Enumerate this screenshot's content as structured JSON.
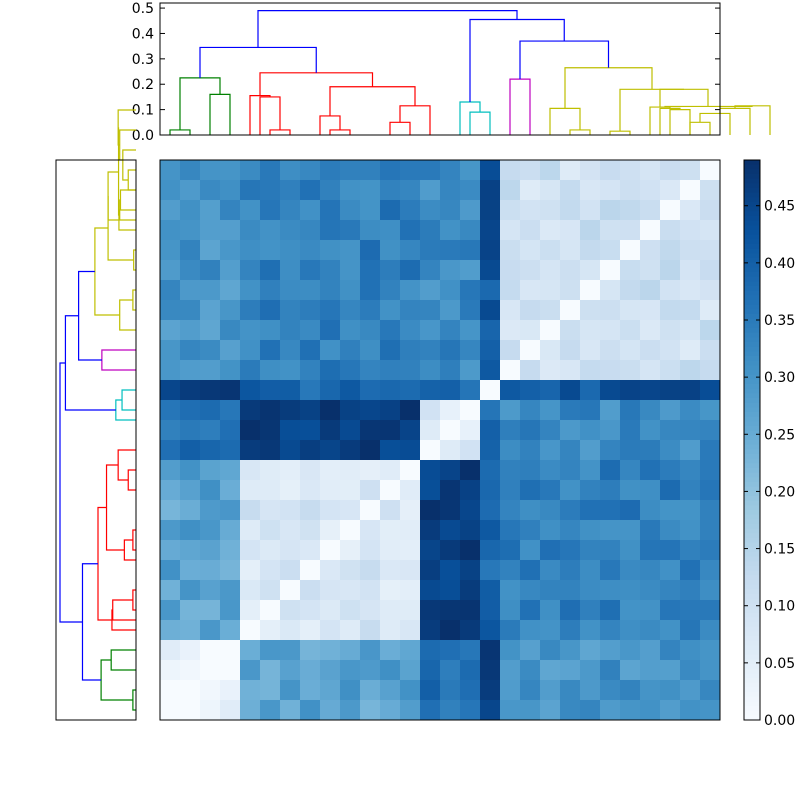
{
  "chart_data": [
    {
      "type": "dendrogram",
      "orientation": "top",
      "ylim": [
        0,
        0.52
      ],
      "yticks": [
        0.0,
        0.1,
        0.2,
        0.3,
        0.4,
        0.5
      ],
      "ytick_labels": [
        "0.0",
        "0.1",
        "0.2",
        "0.3",
        "0.4",
        "0.5"
      ],
      "leaf_count": 28,
      "links": [
        {
          "a": 0.5,
          "b": 1.5,
          "h": 0.02,
          "ha": 0,
          "hb": 0,
          "color": "#008000"
        },
        {
          "a": 2.5,
          "b": 3.5,
          "h": 0.16,
          "ha": 0,
          "hb": 0,
          "color": "#008000"
        },
        {
          "a": 1.0,
          "b": 3.0,
          "h": 0.225,
          "ha": 0.02,
          "hb": 0.16,
          "color": "#008000"
        },
        {
          "a": 5.5,
          "b": 6.5,
          "h": 0.02,
          "ha": 0,
          "hb": 0,
          "color": "#ff0000"
        },
        {
          "a": 5.0,
          "b": 6.0,
          "h": 0.15,
          "ha": 0,
          "hb": 0.02,
          "color": "#ff0000"
        },
        {
          "a": 4.5,
          "b": 5.5,
          "h": 0.155,
          "ha": 0,
          "hb": 0.15,
          "color": "#ff0000"
        },
        {
          "a": 8.5,
          "b": 9.5,
          "h": 0.02,
          "ha": 0,
          "hb": 0,
          "color": "#ff0000"
        },
        {
          "a": 8.0,
          "b": 9.0,
          "h": 0.075,
          "ha": 0,
          "hb": 0.02,
          "color": "#ff0000"
        },
        {
          "a": 11.5,
          "b": 12.5,
          "h": 0.05,
          "ha": 0,
          "hb": 0,
          "color": "#ff0000"
        },
        {
          "a": 12.0,
          "b": 13.5,
          "h": 0.115,
          "ha": 0.05,
          "hb": 0,
          "color": "#ff0000"
        },
        {
          "a": 8.5,
          "b": 12.75,
          "h": 0.19,
          "ha": 0.075,
          "hb": 0.115,
          "color": "#ff0000"
        },
        {
          "a": 5.0,
          "b": 10.625,
          "h": 0.245,
          "ha": 0.155,
          "hb": 0.19,
          "color": "#ff0000"
        },
        {
          "a": 2.0,
          "b": 7.8125,
          "h": 0.345,
          "ha": 0.225,
          "hb": 0.245,
          "color": "#0000ff"
        },
        {
          "a": 15.5,
          "b": 16.5,
          "h": 0.09,
          "ha": 0,
          "hb": 0,
          "color": "#00bfbf"
        },
        {
          "a": 15.0,
          "b": 16.0,
          "h": 0.13,
          "ha": 0,
          "hb": 0.09,
          "color": "#00bfbf"
        },
        {
          "a": 17.5,
          "b": 18.5,
          "h": 0.22,
          "ha": 0,
          "hb": 0,
          "color": "#bf00bf"
        },
        {
          "a": 20.5,
          "b": 21.5,
          "h": 0.02,
          "ha": 0,
          "hb": 0,
          "color": "#bfbf00"
        },
        {
          "a": 19.5,
          "b": 21.0,
          "h": 0.105,
          "ha": 0,
          "hb": 0.02,
          "color": "#bfbf00"
        },
        {
          "a": 22.5,
          "b": 23.5,
          "h": 0.015,
          "ha": 0,
          "hb": 0,
          "color": "#bfbf00"
        },
        {
          "a": 25.5,
          "b": 26.5,
          "h": 0.1,
          "ha": 0,
          "hb": 0,
          "color": "#bfbf00"
        },
        {
          "a": 25.0,
          "b": 26.0,
          "h": 0.105,
          "ha": 0,
          "hb": 0.1,
          "color": "#bfbf00"
        },
        {
          "a": 24.5,
          "b": 25.5,
          "h": 0.11,
          "ha": 0,
          "hb": 0.105,
          "color": "#bfbf00"
        },
        {
          "a": 26.5,
          "b": 27.5,
          "h": 0.05,
          "ha": 0,
          "hb": 0,
          "color": "#bfbf00"
        },
        {
          "a": 27.0,
          "b": 28.5,
          "h": 0.085,
          "ha": 0.05,
          "hb": 0,
          "color": "#bfbf00"
        },
        {
          "a": 28.0,
          "b": 29.5,
          "h": 0.105,
          "ha": 0.085,
          "hb": 0,
          "color": "#bfbf00"
        },
        {
          "a": 28.75,
          "b": 30.5,
          "h": 0.115,
          "ha": 0.105,
          "hb": 0,
          "color": "#bfbf00"
        },
        {
          "a": 25.25,
          "b": 29.6,
          "h": 0.1125,
          "ha": 0.11,
          "hb": 0.115,
          "color": "#bfbf00"
        },
        {
          "a": 25.0,
          "b": 27.4,
          "h": 0.18,
          "ha": 0.1125,
          "hb": 0.1125,
          "color": "#bfbf00"
        },
        {
          "a": 23.0,
          "b": 26.2,
          "h": 0.18,
          "ha": 0.015,
          "hb": 0.18,
          "color": "#bfbf00"
        },
        {
          "a": 20.25,
          "b": 24.6,
          "h": 0.265,
          "ha": 0.105,
          "hb": 0.18,
          "color": "#bfbf00"
        },
        {
          "a": 18.0,
          "b": 22.425,
          "h": 0.37,
          "ha": 0.22,
          "hb": 0.265,
          "color": "#0000ff"
        },
        {
          "a": 15.5,
          "b": 20.2125,
          "h": 0.455,
          "ha": 0.13,
          "hb": 0.37,
          "color": "#0000ff"
        },
        {
          "a": 4.9,
          "b": 17.85,
          "h": 0.49,
          "ha": 0.345,
          "hb": 0.455,
          "color": "#0000ff"
        }
      ]
    },
    {
      "type": "dendrogram",
      "orientation": "left",
      "leaf_count": 28,
      "links": [
        {
          "a": 0.5,
          "b": 1.5,
          "h": 0.02,
          "ha": 0,
          "hb": 0,
          "color": "#008000"
        },
        {
          "a": 2.5,
          "b": 3.5,
          "h": 0.16,
          "ha": 0,
          "hb": 0,
          "color": "#008000"
        },
        {
          "a": 1.0,
          "b": 3.0,
          "h": 0.225,
          "ha": 0.02,
          "hb": 0.16,
          "color": "#008000"
        },
        {
          "a": 5.5,
          "b": 6.5,
          "h": 0.02,
          "ha": 0,
          "hb": 0,
          "color": "#ff0000"
        },
        {
          "a": 5.0,
          "b": 6.0,
          "h": 0.15,
          "ha": 0,
          "hb": 0.02,
          "color": "#ff0000"
        },
        {
          "a": 4.5,
          "b": 5.5,
          "h": 0.155,
          "ha": 0,
          "hb": 0.15,
          "color": "#ff0000"
        },
        {
          "a": 8.5,
          "b": 9.5,
          "h": 0.02,
          "ha": 0,
          "hb": 0,
          "color": "#ff0000"
        },
        {
          "a": 8.0,
          "b": 9.0,
          "h": 0.075,
          "ha": 0,
          "hb": 0.02,
          "color": "#ff0000"
        },
        {
          "a": 11.5,
          "b": 12.5,
          "h": 0.05,
          "ha": 0,
          "hb": 0,
          "color": "#ff0000"
        },
        {
          "a": 12.0,
          "b": 13.5,
          "h": 0.115,
          "ha": 0.05,
          "hb": 0,
          "color": "#ff0000"
        },
        {
          "a": 8.5,
          "b": 12.75,
          "h": 0.19,
          "ha": 0.075,
          "hb": 0.115,
          "color": "#ff0000"
        },
        {
          "a": 5.0,
          "b": 10.625,
          "h": 0.245,
          "ha": 0.155,
          "hb": 0.19,
          "color": "#ff0000"
        },
        {
          "a": 2.0,
          "b": 7.8125,
          "h": 0.345,
          "ha": 0.225,
          "hb": 0.245,
          "color": "#0000ff"
        },
        {
          "a": 15.5,
          "b": 16.5,
          "h": 0.09,
          "ha": 0,
          "hb": 0,
          "color": "#00bfbf"
        },
        {
          "a": 15.0,
          "b": 16.0,
          "h": 0.13,
          "ha": 0,
          "hb": 0.09,
          "color": "#00bfbf"
        },
        {
          "a": 17.5,
          "b": 18.5,
          "h": 0.22,
          "ha": 0,
          "hb": 0,
          "color": "#bf00bf"
        },
        {
          "a": 20.5,
          "b": 21.5,
          "h": 0.02,
          "ha": 0,
          "hb": 0,
          "color": "#bfbf00"
        },
        {
          "a": 19.5,
          "b": 21.0,
          "h": 0.105,
          "ha": 0,
          "hb": 0.02,
          "color": "#bfbf00"
        },
        {
          "a": 22.5,
          "b": 23.5,
          "h": 0.015,
          "ha": 0,
          "hb": 0,
          "color": "#bfbf00"
        },
        {
          "a": 25.5,
          "b": 26.5,
          "h": 0.1,
          "ha": 0,
          "hb": 0,
          "color": "#bfbf00"
        },
        {
          "a": 25.0,
          "b": 26.0,
          "h": 0.105,
          "ha": 0,
          "hb": 0.1,
          "color": "#bfbf00"
        },
        {
          "a": 24.5,
          "b": 25.5,
          "h": 0.11,
          "ha": 0,
          "hb": 0.105,
          "color": "#bfbf00"
        },
        {
          "a": 26.5,
          "b": 27.5,
          "h": 0.05,
          "ha": 0,
          "hb": 0,
          "color": "#bfbf00"
        },
        {
          "a": 27.0,
          "b": 28.5,
          "h": 0.085,
          "ha": 0.05,
          "hb": 0,
          "color": "#bfbf00"
        },
        {
          "a": 28.0,
          "b": 29.5,
          "h": 0.105,
          "ha": 0.085,
          "hb": 0,
          "color": "#bfbf00"
        },
        {
          "a": 28.75,
          "b": 30.5,
          "h": 0.115,
          "ha": 0.105,
          "hb": 0,
          "color": "#bfbf00"
        },
        {
          "a": 25.25,
          "b": 29.6,
          "h": 0.1125,
          "ha": 0.11,
          "hb": 0.115,
          "color": "#bfbf00"
        },
        {
          "a": 25.0,
          "b": 27.4,
          "h": 0.18,
          "ha": 0.1125,
          "hb": 0.1125,
          "color": "#bfbf00"
        },
        {
          "a": 23.0,
          "b": 26.2,
          "h": 0.18,
          "ha": 0.015,
          "hb": 0.18,
          "color": "#bfbf00"
        },
        {
          "a": 20.25,
          "b": 24.6,
          "h": 0.265,
          "ha": 0.105,
          "hb": 0.18,
          "color": "#bfbf00"
        },
        {
          "a": 18.0,
          "b": 22.425,
          "h": 0.37,
          "ha": 0.22,
          "hb": 0.265,
          "color": "#0000ff"
        },
        {
          "a": 15.5,
          "b": 20.2125,
          "h": 0.455,
          "ha": 0.13,
          "hb": 0.37,
          "color": "#0000ff"
        },
        {
          "a": 4.9,
          "b": 17.85,
          "h": 0.49,
          "ha": 0.345,
          "hb": 0.455,
          "color": "#0000ff"
        }
      ]
    },
    {
      "type": "heatmap",
      "rows": 28,
      "cols": 28,
      "colormap": "Blues",
      "vmin": 0.0,
      "vmax": 0.49,
      "clusters": [
        {
          "name": "green",
          "start": 0,
          "end": 4
        },
        {
          "name": "red",
          "start": 4,
          "end": 13
        },
        {
          "name": "cyan",
          "start": 13,
          "end": 16
        },
        {
          "name": "magenta",
          "start": 16,
          "end": 17
        },
        {
          "name": "yellow",
          "start": 17,
          "end": 28
        }
      ],
      "cluster_distance": [
        [
          0.03,
          0.27,
          0.37,
          0.44,
          0.3
        ],
        [
          0.27,
          0.08,
          0.47,
          0.38,
          0.34
        ],
        [
          0.37,
          0.47,
          0.06,
          0.36,
          0.32
        ],
        [
          0.44,
          0.38,
          0.36,
          0.0,
          0.42
        ],
        [
          0.3,
          0.34,
          0.32,
          0.42,
          0.1
        ]
      ]
    },
    {
      "type": "colorbar",
      "vmin": 0.0,
      "vmax": 0.49,
      "ticks": [
        0.0,
        0.05,
        0.1,
        0.15,
        0.2,
        0.25,
        0.3,
        0.35,
        0.4,
        0.45
      ],
      "tick_labels": [
        "0.00",
        "0.05",
        "0.10",
        "0.15",
        "0.20",
        "0.25",
        "0.30",
        "0.35",
        "0.40",
        "0.45"
      ]
    }
  ]
}
